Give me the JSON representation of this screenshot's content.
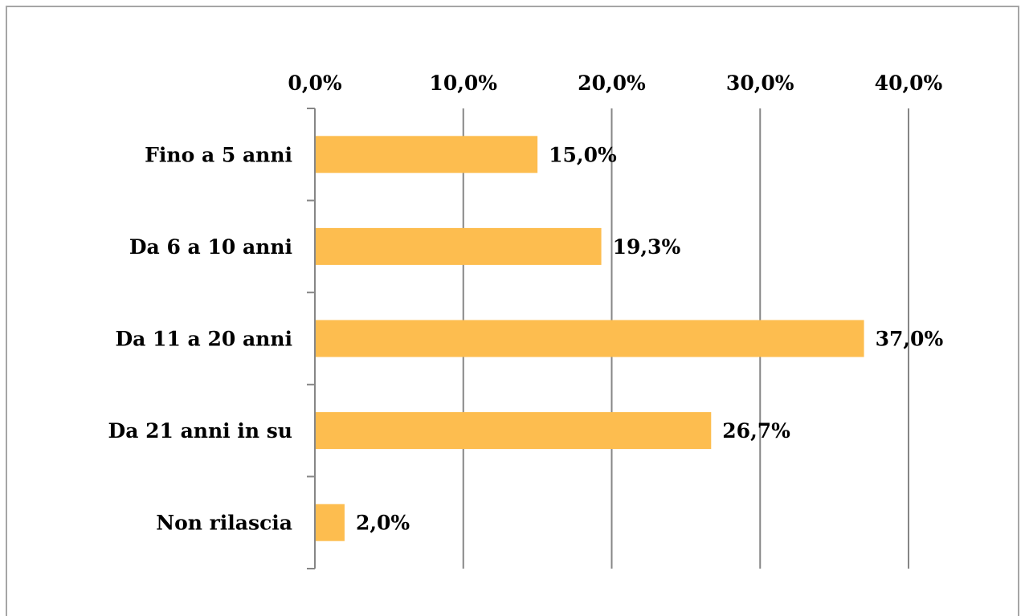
{
  "chart_data": {
    "type": "bar",
    "orientation": "horizontal",
    "categories": [
      "Fino a 5 anni",
      "Da 6 a 10 anni",
      "Da 11 a 20 anni",
      "Da 21 anni in su",
      "Non rilascia"
    ],
    "values": [
      15.0,
      19.3,
      37.0,
      26.7,
      2.0
    ],
    "data_labels": [
      "15,0%",
      "19,3%",
      "37,0%",
      "26,7%",
      "2,0%"
    ],
    "x_ticks": [
      0,
      10,
      20,
      30,
      40
    ],
    "x_tick_labels": [
      "0,0%",
      "10,0%",
      "20,0%",
      "30,0%",
      "40,0%"
    ],
    "xlim": [
      0,
      40
    ],
    "x_axis_position": "top",
    "grid": true,
    "legend": false,
    "bar_color": "#FDBD4F",
    "grid_color": "#868686"
  }
}
